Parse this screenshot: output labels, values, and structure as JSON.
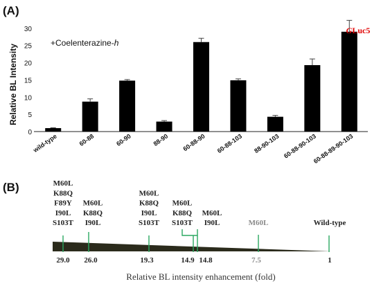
{
  "panel_a": {
    "label": "(A)",
    "annotation": "+Coelenterazine-",
    "annotation_italic": "h",
    "highlight": {
      "prefix": "G",
      "suffix": "Luc5",
      "color": "#e00000"
    }
  },
  "panel_b": {
    "label": "(B)",
    "axis_title": "Relative BL intensity enhancement (fold)",
    "marker_color": "#2aa860",
    "wedge_color": "#2b2b1c",
    "groups": [
      {
        "mutations": [
          "M60L",
          "K88Q",
          "F89Y",
          "I90L",
          "S103T"
        ],
        "value": "29.0",
        "muted": false
      },
      {
        "mutations": [
          "M60L",
          "K88Q",
          "I90L"
        ],
        "value": "26.0",
        "muted": false
      },
      {
        "mutations": [
          "M60L",
          "K88Q",
          "I90L",
          "S103T"
        ],
        "value": "19.3",
        "muted": false
      },
      {
        "mutations": [
          "M60L",
          "K88Q",
          "S103T"
        ],
        "value": "14.9",
        "muted": false
      },
      {
        "mutations": [
          "M60L",
          "I90L"
        ],
        "value": "14.8",
        "muted": false
      },
      {
        "mutations": [
          "M60L"
        ],
        "value": "7.5",
        "muted": true
      },
      {
        "mutations": [
          "Wild-type"
        ],
        "value": "1",
        "muted": false
      }
    ]
  },
  "chart_data": {
    "type": "bar",
    "title": "",
    "xlabel": "",
    "ylabel": "Relative BL Intensity",
    "ylim": [
      0,
      35
    ],
    "yticks": [
      "0",
      "5",
      "10",
      "15",
      "20",
      "25",
      "30"
    ],
    "bar_color": "#000000",
    "categories": [
      "wild-type",
      "60-88",
      "60-90",
      "88-90",
      "60-88-90",
      "60-88-103",
      "88-90-103",
      "60-88-90-103",
      "60-88-89-90-103"
    ],
    "values": [
      1.0,
      8.7,
      14.8,
      2.9,
      26.0,
      14.9,
      4.3,
      19.3,
      29.0
    ],
    "errors": [
      0.1,
      0.8,
      0.3,
      0.3,
      1.1,
      0.4,
      0.4,
      1.8,
      3.3
    ]
  }
}
